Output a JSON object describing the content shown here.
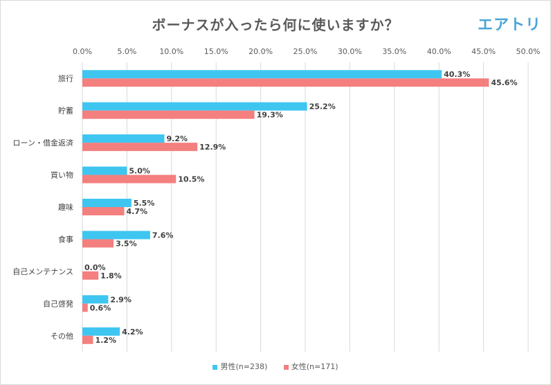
{
  "title": "ボーナスが入ったら何に使いますか？",
  "logo": "エアトリ",
  "colors": {
    "male": "#3ec6f1",
    "female": "#f47f7f"
  },
  "chart_data": {
    "type": "bar",
    "orientation": "horizontal",
    "title": "ボーナスが入ったら何に使いますか？",
    "categories": [
      "旅行",
      "貯蓄",
      "ローン・借金返済",
      "買い物",
      "趣味",
      "食事",
      "自己メンテナンス",
      "自己啓発",
      "その他"
    ],
    "series": [
      {
        "name": "男性(n=238)",
        "values": [
          40.3,
          25.2,
          9.2,
          5.0,
          5.5,
          7.6,
          0.0,
          2.9,
          4.2
        ]
      },
      {
        "name": "女性(n=171)",
        "values": [
          45.6,
          19.3,
          12.9,
          10.5,
          4.7,
          3.5,
          1.8,
          0.6,
          1.2
        ]
      }
    ],
    "xlim": [
      0,
      50
    ],
    "xticks": [
      "0.0%",
      "5.0%",
      "10.0%",
      "15.0%",
      "20.0%",
      "25.0%",
      "30.0%",
      "35.0%",
      "40.0%",
      "45.0%",
      "50.0%"
    ],
    "value_labels": [
      [
        "40.3%",
        "25.2%",
        "9.2%",
        "5.0%",
        "5.5%",
        "7.6%",
        "0.0%",
        "2.9%",
        "4.2%"
      ],
      [
        "45.6%",
        "19.3%",
        "12.9%",
        "10.5%",
        "4.7%",
        "3.5%",
        "1.8%",
        "0.6%",
        "1.2%"
      ]
    ],
    "grid": true,
    "legend_position": "bottom"
  }
}
